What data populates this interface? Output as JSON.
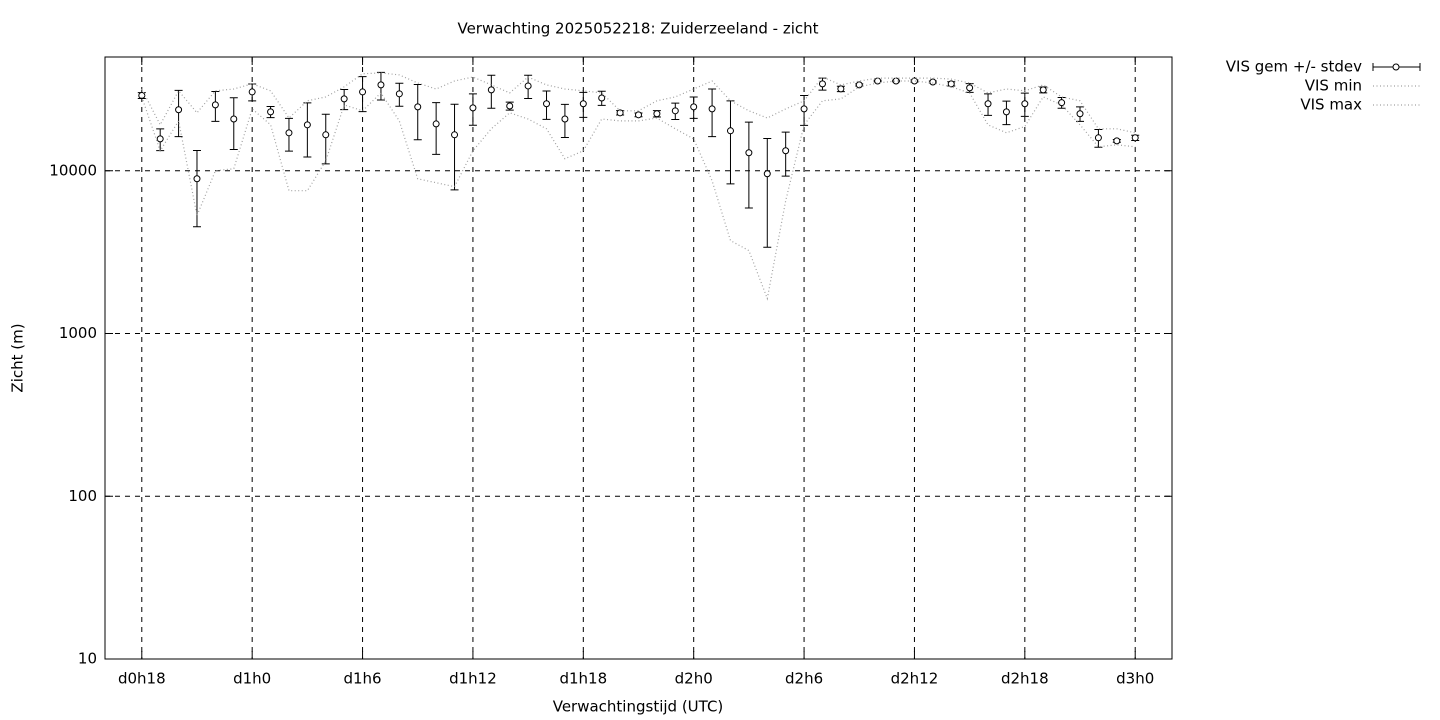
{
  "chart_data": {
    "type": "errorbar-line",
    "title": "Verwachting 2025052218: Zuiderzeeland - zicht",
    "xlabel": "Verwachtingstijd (UTC)",
    "ylabel": "Zicht (m)",
    "x": [
      18,
      19,
      20,
      21,
      22,
      23,
      24,
      25,
      26,
      27,
      28,
      29,
      30,
      31,
      32,
      33,
      34,
      35,
      36,
      37,
      38,
      39,
      40,
      41,
      42,
      43,
      44,
      45,
      46,
      47,
      48,
      49,
      50,
      51,
      52,
      53,
      54,
      55,
      56,
      57,
      58,
      59,
      60,
      61,
      62,
      63,
      64,
      65,
      66,
      67,
      68,
      69,
      70,
      71,
      72
    ],
    "series": [
      {
        "name": "VIS gem +/- stdev",
        "color": "#000000",
        "style": "errorbar",
        "values": [
          29000,
          15700,
          23700,
          8930,
          25400,
          20800,
          30500,
          23000,
          17100,
          19150,
          16630,
          27650,
          30500,
          33700,
          29700,
          24700,
          19400,
          16630,
          24350,
          31400,
          25000,
          33200,
          25800,
          20800,
          25800,
          28000,
          22700,
          22060,
          22400,
          23350,
          24700,
          24000,
          17600,
          12900,
          9590,
          13270,
          24000,
          34200,
          31850,
          33700,
          35600,
          35600,
          35600,
          35100,
          34200,
          32300,
          25800,
          23000,
          25800,
          31400,
          26200,
          22400,
          15940,
          15260,
          15940
        ],
        "errors": [
          1200,
          2400,
          7500,
          4400,
          5300,
          7300,
          3600,
          1800,
          3900,
          7000,
          5600,
          3900,
          7400,
          6500,
          4800,
          9200,
          6800,
          9000,
          5300,
          7200,
          1400,
          5400,
          5100,
          4800,
          4500,
          2800,
          700,
          600,
          1000,
          2700,
          3700,
          7800,
          9300,
          7000,
          6200,
          4000,
          5000,
          2900,
          1200,
          500,
          400,
          400,
          500,
          500,
          1000,
          2000,
          3900,
          3800,
          4200,
          1300,
          2000,
          2300,
          2000,
          300,
          600
        ]
      },
      {
        "name": "VIS min",
        "color": "#a0a0a0",
        "style": "dotted",
        "values": [
          28450,
          13270,
          20250,
          5300,
          10000,
          10290,
          24000,
          19150,
          7540,
          7540,
          11520,
          25400,
          23350,
          30100,
          20250,
          8930,
          8440,
          7980,
          13270,
          18100,
          22700,
          20800,
          18100,
          11850,
          13270,
          20800,
          20250,
          20250,
          21100,
          18100,
          15700,
          8680,
          3720,
          3230,
          1640,
          6550,
          19150,
          26900,
          27650,
          32800,
          34600,
          35600,
          35600,
          34600,
          32800,
          30100,
          19150,
          17100,
          18700,
          28450,
          25400,
          19150,
          14040,
          14430,
          14040
        ]
      },
      {
        "name": "VIS max",
        "color": "#a0a0a0",
        "style": "dotted",
        "values": [
          31800,
          19150,
          31000,
          22700,
          31000,
          31800,
          34200,
          31000,
          21100,
          26900,
          28450,
          32800,
          39400,
          39900,
          38800,
          34600,
          31800,
          35600,
          37700,
          33700,
          30100,
          37700,
          33700,
          31800,
          31000,
          30100,
          23350,
          23350,
          26900,
          28450,
          31800,
          35600,
          26900,
          23350,
          21100,
          24000,
          26900,
          37700,
          33700,
          35600,
          37100,
          37100,
          37100,
          37100,
          36600,
          34600,
          30100,
          31800,
          31000,
          33700,
          28450,
          26900,
          18100,
          18100,
          17100
        ]
      }
    ],
    "xlim": [
      16,
      74
    ],
    "ylim": [
      10,
      50000
    ],
    "log_y": true,
    "grid": true,
    "legend": "top-right-outside",
    "xticks": [
      {
        "value": 18,
        "label": "d0h18"
      },
      {
        "value": 24,
        "label": "d1h0"
      },
      {
        "value": 30,
        "label": "d1h6"
      },
      {
        "value": 36,
        "label": "d1h12"
      },
      {
        "value": 42,
        "label": "d1h18"
      },
      {
        "value": 48,
        "label": "d2h0"
      },
      {
        "value": 54,
        "label": "d2h6"
      },
      {
        "value": 60,
        "label": "d2h12"
      },
      {
        "value": 66,
        "label": "d2h18"
      },
      {
        "value": 72,
        "label": "d3h0"
      }
    ],
    "yticks": [
      10,
      100,
      1000,
      10000
    ]
  }
}
